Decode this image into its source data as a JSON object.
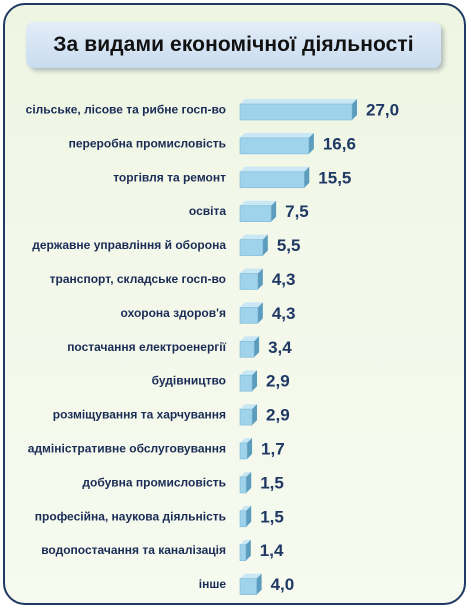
{
  "chart_data": {
    "type": "bar",
    "orientation": "horizontal",
    "title": "За видами економічної діяльності",
    "categories": [
      "сільське, лісове та рибне госп-во",
      "переробна промисловість",
      "торгівля та ремонт",
      "освіта",
      "державне управління й оборона",
      "транспорт, складське госп-во",
      "охорона здоров'я",
      "постачання електроенергії",
      "будівництво",
      "розміщування та харчування",
      "адміністративне  обслуговування",
      "добувна промисловість",
      "професійна, наукова діяльність",
      "водопостачання та каналізація",
      "інше"
    ],
    "values": [
      27.0,
      16.6,
      15.5,
      7.5,
      5.5,
      4.3,
      4.3,
      3.4,
      2.9,
      2.9,
      1.7,
      1.5,
      1.5,
      1.4,
      4.0
    ],
    "value_labels": [
      "27,0",
      "16,6",
      "15,5",
      "7,5",
      "5,5",
      "4,3",
      "4,3",
      "3,4",
      "2,9",
      "2,9",
      "1,7",
      "1,5",
      "1,5",
      "1,4",
      "4,0"
    ],
    "xlim": [
      0,
      27
    ],
    "grid": false,
    "legend": "none",
    "colors": {
      "bar_front": "#9fd3ec",
      "bar_top": "#c9e7f5",
      "bar_side": "#5c9cbc",
      "labels": "#1f3864"
    }
  }
}
